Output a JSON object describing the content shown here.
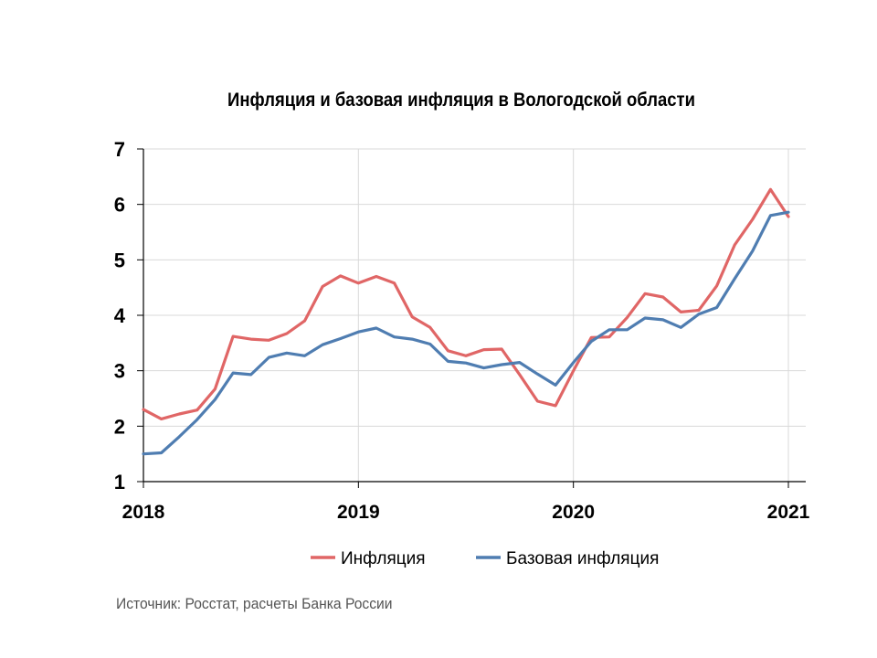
{
  "chart_data": {
    "type": "line",
    "title": "Инфляция и базовая инфляция в Вологодской области",
    "xlabel": "",
    "ylabel": "",
    "x_ticks": [
      "2018",
      "2019",
      "2020",
      "2021"
    ],
    "xlim": [
      2018.0,
      2021.0833
    ],
    "ylim": [
      1,
      7
    ],
    "y_ticks": [
      "1",
      "2",
      "3",
      "4",
      "5",
      "6",
      "7"
    ],
    "grid": true,
    "legend_position": "bottom",
    "series": [
      {
        "name": "Инфляция",
        "color": "#e06666",
        "x": [
          2018.0,
          2018.0833,
          2018.1667,
          2018.25,
          2018.3333,
          2018.4167,
          2018.5,
          2018.5833,
          2018.6667,
          2018.75,
          2018.8333,
          2018.9167,
          2019.0,
          2019.0833,
          2019.1667,
          2019.25,
          2019.3333,
          2019.4167,
          2019.5,
          2019.5833,
          2019.6667,
          2019.75,
          2019.8333,
          2019.9167,
          2020.0,
          2020.0833,
          2020.1667,
          2020.25,
          2020.3333,
          2020.4167,
          2020.5,
          2020.5833,
          2020.6667,
          2020.75,
          2020.8333,
          2020.9167,
          2021.0
        ],
        "values": [
          2.3,
          2.13,
          2.22,
          2.29,
          2.67,
          3.62,
          3.57,
          3.55,
          3.67,
          3.9,
          4.52,
          4.71,
          4.58,
          4.7,
          4.58,
          3.97,
          3.78,
          3.36,
          3.27,
          3.38,
          3.39,
          2.93,
          2.45,
          2.37,
          3.0,
          3.6,
          3.61,
          3.96,
          4.39,
          4.33,
          4.06,
          4.09,
          4.53,
          5.27,
          5.73,
          6.27,
          5.78
        ]
      },
      {
        "name": "Базовая инфляция",
        "color": "#4f7db1",
        "x": [
          2018.0,
          2018.0833,
          2018.1667,
          2018.25,
          2018.3333,
          2018.4167,
          2018.5,
          2018.5833,
          2018.6667,
          2018.75,
          2018.8333,
          2018.9167,
          2019.0,
          2019.0833,
          2019.1667,
          2019.25,
          2019.3333,
          2019.4167,
          2019.5,
          2019.5833,
          2019.6667,
          2019.75,
          2019.8333,
          2019.9167,
          2020.0,
          2020.0833,
          2020.1667,
          2020.25,
          2020.3333,
          2020.4167,
          2020.5,
          2020.5833,
          2020.6667,
          2020.75,
          2020.8333,
          2020.9167,
          2021.0
        ],
        "values": [
          1.5,
          1.52,
          1.81,
          2.12,
          2.48,
          2.96,
          2.93,
          3.24,
          3.32,
          3.27,
          3.47,
          3.58,
          3.7,
          3.77,
          3.61,
          3.57,
          3.48,
          3.17,
          3.14,
          3.05,
          3.11,
          3.15,
          2.94,
          2.74,
          3.15,
          3.53,
          3.74,
          3.74,
          3.95,
          3.92,
          3.78,
          4.02,
          4.14,
          4.66,
          5.16,
          5.8,
          5.86
        ]
      }
    ]
  },
  "source_note": "Источник: Росстат, расчеты Банка России"
}
